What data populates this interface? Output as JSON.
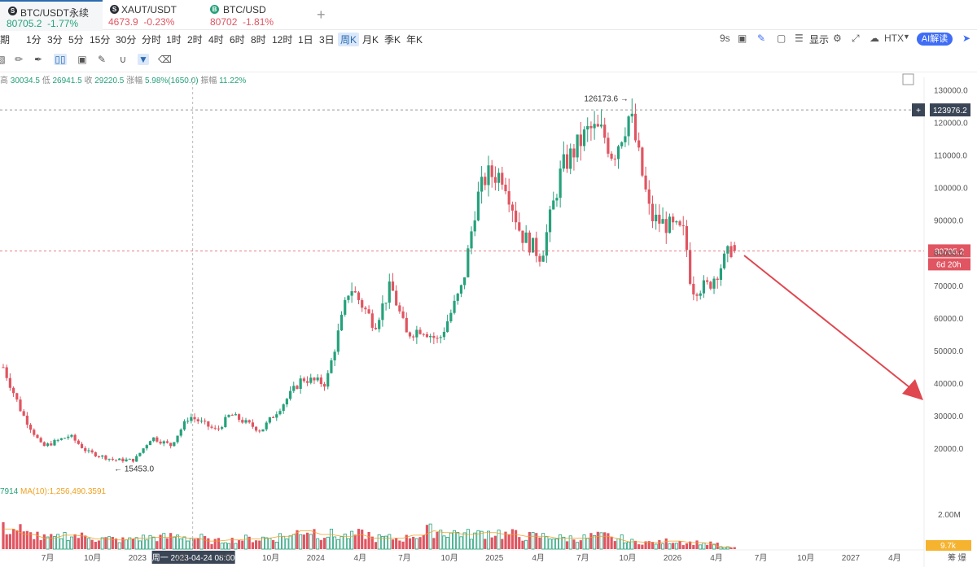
{
  "tabs": [
    {
      "symbol": "BTC/USDT永续",
      "price": "80705.2",
      "change": "-1.77%",
      "color": "#26a17b",
      "icon": "S"
    },
    {
      "symbol": "XAUT/USDT",
      "price": "4673.9",
      "change": "-0.23%",
      "color": "#e05561",
      "icon": "S"
    },
    {
      "symbol": "BTC/USD",
      "price": "80702",
      "change": "-1.81%",
      "color": "#e05561",
      "icon": "B"
    }
  ],
  "add_tab": "+",
  "intervals": {
    "prefix": "期",
    "items": [
      "1分",
      "3分",
      "5分",
      "15分",
      "30分",
      "分时",
      "1时",
      "2时",
      "4时",
      "6时",
      "8时",
      "12时",
      "1日",
      "3日",
      "周K",
      "月K",
      "季K",
      "年K"
    ],
    "selected": "周K"
  },
  "toolbar_right": {
    "countdown": "9s",
    "display": "显示",
    "exchange": "HTX",
    "ai": "AI解读"
  },
  "ohlc": {
    "high_label": "高",
    "high": "30034.5",
    "low_label": "低",
    "low": "26941.5",
    "close_label": "收",
    "close": "29220.5",
    "chg_label": "涨幅",
    "chg": "5.98%(1650.0)",
    "amp_label": "振幅",
    "amp": "11.22%"
  },
  "volume_info": {
    "prefix": "7914",
    "ma": "MA(10):1,256,490.3591"
  },
  "colors": {
    "up": "#26a17b",
    "down": "#e05561",
    "accent": "#2b6cb0",
    "arrow": "#e0474f",
    "ma": "#f0a020",
    "crosshair_label": "#3a4556"
  },
  "chart_data": {
    "type": "candlestick",
    "y_axis": {
      "min": 10000,
      "max": 130000,
      "ticks": [
        130000,
        120000,
        110000,
        100000,
        90000,
        80000,
        70000,
        60000,
        50000,
        40000,
        30000,
        20000
      ],
      "tick_labels": [
        "130000.0",
        "120000.0",
        "110000.0",
        "100000.0",
        "90000.0",
        "80000.0",
        "70000.0",
        "60000.0",
        "50000.0",
        "40000.0",
        "30000.0",
        "20000.0"
      ]
    },
    "x_axis": {
      "tick_labels": [
        "7月",
        "10月",
        "2023",
        "4月",
        "7月",
        "10月",
        "2024",
        "4月",
        "7月",
        "10月",
        "2025",
        "4月",
        "7月",
        "10月",
        "2026",
        "4月",
        "7月",
        "10月",
        "2027",
        "4月"
      ]
    },
    "annotations": {
      "high": "126173.6",
      "low": "15453.0"
    },
    "crosshair": {
      "price": "123976.2",
      "time": "周一 2023-04-24 08:00",
      "plus": "+"
    },
    "last_price": {
      "price": "80705.2",
      "countdown": "6d 20h"
    },
    "volume_axis": {
      "label": "2.00M",
      "last": "9.7k"
    },
    "right_corner": "筹 爆",
    "anchors": [
      [
        "2022-04-01",
        45000
      ],
      [
        "2022-05-09",
        31000
      ],
      [
        "2022-06-20",
        20500
      ],
      [
        "2022-08-15",
        24000
      ],
      [
        "2022-09-20",
        19000
      ],
      [
        "2022-11-14",
        16500
      ],
      [
        "2022-12-26",
        16500
      ],
      [
        "2023-01-30",
        23500
      ],
      [
        "2023-03-10",
        21000
      ],
      [
        "2023-04-17",
        30000
      ],
      [
        "2023-06-12",
        25500
      ],
      [
        "2023-07-10",
        30500
      ],
      [
        "2023-09-11",
        25500
      ],
      [
        "2023-10-30",
        34500
      ],
      [
        "2023-12-04",
        41500
      ],
      [
        "2024-01-22",
        40000
      ],
      [
        "2024-03-11",
        70000
      ],
      [
        "2024-05-01",
        58000
      ],
      [
        "2024-06-03",
        70000
      ],
      [
        "2024-07-05",
        55000
      ],
      [
        "2024-08-05",
        57000
      ],
      [
        "2024-09-09",
        53000
      ],
      [
        "2024-10-28",
        70000
      ],
      [
        "2024-11-25",
        96000
      ],
      [
        "2024-12-16",
        104000
      ],
      [
        "2025-01-20",
        104000
      ],
      [
        "2025-02-24",
        86000
      ],
      [
        "2025-04-07",
        79000
      ],
      [
        "2025-05-19",
        106000
      ],
      [
        "2025-07-14",
        118000
      ],
      [
        "2025-08-11",
        117000
      ],
      [
        "2025-09-01",
        110000
      ],
      [
        "2025-10-06",
        123000
      ],
      [
        "2025-11-17",
        91000
      ],
      [
        "2025-12-29",
        88000
      ],
      [
        "2026-01-26",
        86000
      ],
      [
        "2026-02-09",
        69000
      ],
      [
        "2026-03-16",
        70000
      ],
      [
        "2026-05-04",
        82000
      ],
      [
        "2026-05-11",
        80705
      ]
    ],
    "volume_levels": [
      0.55,
      0.4,
      0.3,
      0.38,
      0.35,
      0.28,
      0.25,
      0.3,
      0.32,
      0.35,
      0.3,
      0.22,
      0.25,
      0.28,
      0.3,
      0.35,
      0.5,
      0.4,
      0.35,
      0.4,
      0.3,
      0.3,
      0.38,
      0.5,
      0.45,
      0.4,
      0.45,
      0.4,
      0.35,
      0.35,
      0.3,
      0.3,
      0.35,
      0.28,
      0.2,
      0.18,
      0.22,
      0.18,
      0.15,
      0.05
    ]
  }
}
